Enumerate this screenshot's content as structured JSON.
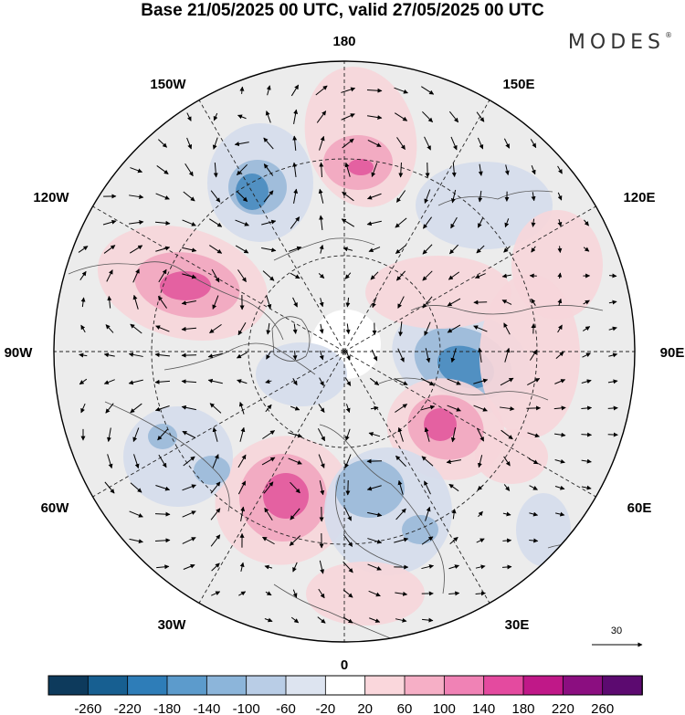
{
  "header": {
    "title": "Base 21/05/2025 00 UTC, valid 27/05/2025 00 UTC",
    "brand": "MODES",
    "brand_mark": "®"
  },
  "map": {
    "projection": "north-polar-stereographic",
    "longitude_labels": {
      "lon_180": "180",
      "lon_150E": "150E",
      "lon_120E": "120E",
      "lon_90E": "90E",
      "lon_60E": "60E",
      "lon_30E": "30E",
      "lon_0": "0",
      "lon_30W": "30W",
      "lon_60W": "60W",
      "lon_90W": "90W",
      "lon_120W": "120W",
      "lon_150W": "150W"
    },
    "vector_reference": {
      "label": "30"
    },
    "colors": {
      "neutral_fill": "#ececec",
      "neg_strong": "#4a8cc0",
      "neg_mid": "#9bbad9",
      "neg_weak": "#d5dcec",
      "pos_weak": "#f6d6da",
      "pos_mid": "#f1a7bf",
      "pos_strong": "#e35a9e"
    }
  },
  "colorbar": {
    "ticks": [
      "-260",
      "-220",
      "-180",
      "-140",
      "-100",
      "-60",
      "-20",
      "20",
      "60",
      "100",
      "140",
      "180",
      "220",
      "260"
    ],
    "colors": [
      "#0d3a5c",
      "#175f91",
      "#2e7db8",
      "#5c9bcc",
      "#8cb5da",
      "#b9cde6",
      "#dde4f0",
      "#ffffff",
      "#fad7dc",
      "#f6afc6",
      "#f082b5",
      "#e44a9f",
      "#c01888",
      "#8b0e80",
      "#5c0a70"
    ]
  }
}
